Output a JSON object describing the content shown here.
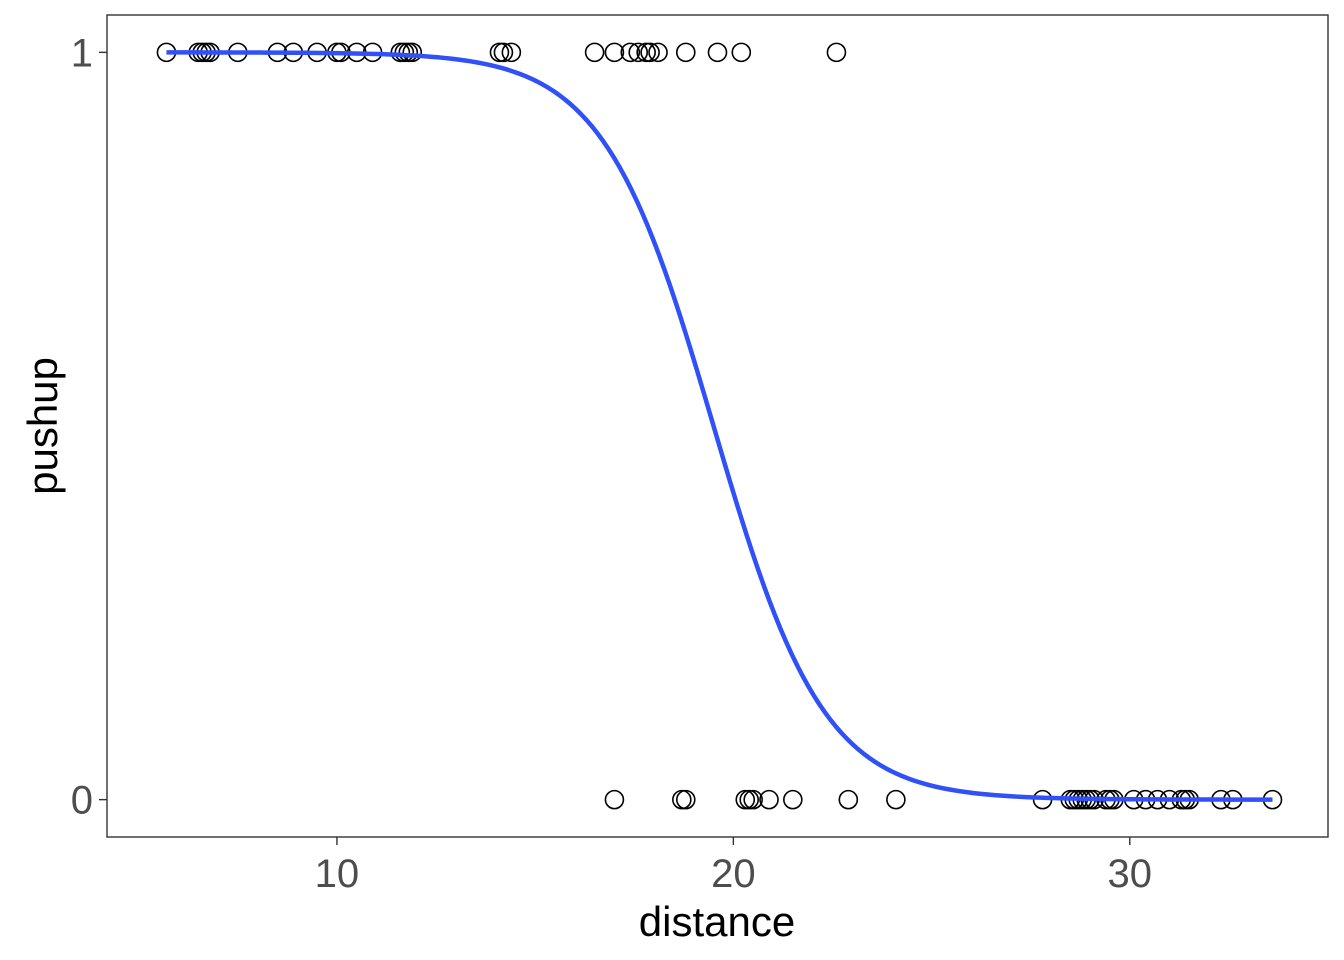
{
  "chart_data": {
    "type": "scatter",
    "title": "",
    "xlabel": "distance",
    "ylabel": "pushup",
    "xlim": [
      4.2,
      35.0
    ],
    "ylim": [
      -0.05,
      1.05
    ],
    "x_ticks": [
      10,
      20,
      30
    ],
    "x_tick_labels": [
      "10",
      "20",
      "30"
    ],
    "y_ticks": [
      0,
      1
    ],
    "y_tick_labels": [
      "0",
      "1"
    ],
    "grid": false,
    "legend": "none",
    "colors": {
      "points": "#000000",
      "curve": "#3050f8",
      "frame": "#333333"
    },
    "series": [
      {
        "type": "scatter",
        "marker": "open-circle",
        "points": [
          [
            5.7,
            1
          ],
          [
            6.5,
            1
          ],
          [
            6.6,
            1
          ],
          [
            6.7,
            1
          ],
          [
            6.8,
            1
          ],
          [
            7.5,
            1
          ],
          [
            8.5,
            1
          ],
          [
            8.9,
            1
          ],
          [
            9.5,
            1
          ],
          [
            10.0,
            1
          ],
          [
            10.1,
            1
          ],
          [
            10.5,
            1
          ],
          [
            10.9,
            1
          ],
          [
            11.6,
            1
          ],
          [
            11.7,
            1
          ],
          [
            11.8,
            1
          ],
          [
            11.9,
            1
          ],
          [
            14.1,
            1
          ],
          [
            14.2,
            1
          ],
          [
            14.4,
            1
          ],
          [
            16.5,
            1
          ],
          [
            17.0,
            1
          ],
          [
            17.4,
            1
          ],
          [
            17.6,
            1
          ],
          [
            17.8,
            1
          ],
          [
            17.9,
            1
          ],
          [
            18.1,
            1
          ],
          [
            18.8,
            1
          ],
          [
            19.6,
            1
          ],
          [
            20.2,
            1
          ],
          [
            22.6,
            1
          ],
          [
            17.0,
            0
          ],
          [
            18.7,
            0
          ],
          [
            18.8,
            0
          ],
          [
            20.3,
            0
          ],
          [
            20.4,
            0
          ],
          [
            20.5,
            0
          ],
          [
            20.9,
            0
          ],
          [
            21.5,
            0
          ],
          [
            22.9,
            0
          ],
          [
            24.1,
            0
          ],
          [
            27.8,
            0
          ],
          [
            28.5,
            0
          ],
          [
            28.6,
            0
          ],
          [
            28.7,
            0
          ],
          [
            28.8,
            0
          ],
          [
            28.9,
            0
          ],
          [
            29.0,
            0
          ],
          [
            29.1,
            0
          ],
          [
            29.4,
            0
          ],
          [
            29.5,
            0
          ],
          [
            29.6,
            0
          ],
          [
            30.1,
            0
          ],
          [
            30.4,
            0
          ],
          [
            30.7,
            0
          ],
          [
            31.0,
            0
          ],
          [
            31.3,
            0
          ],
          [
            31.4,
            0
          ],
          [
            31.5,
            0
          ],
          [
            32.3,
            0
          ],
          [
            32.6,
            0
          ],
          [
            33.6,
            0
          ]
        ]
      },
      {
        "type": "line",
        "fit": "logistic",
        "x_range": [
          5.7,
          33.6
        ],
        "midpoint": 19.5,
        "slope": -0.72
      }
    ]
  }
}
